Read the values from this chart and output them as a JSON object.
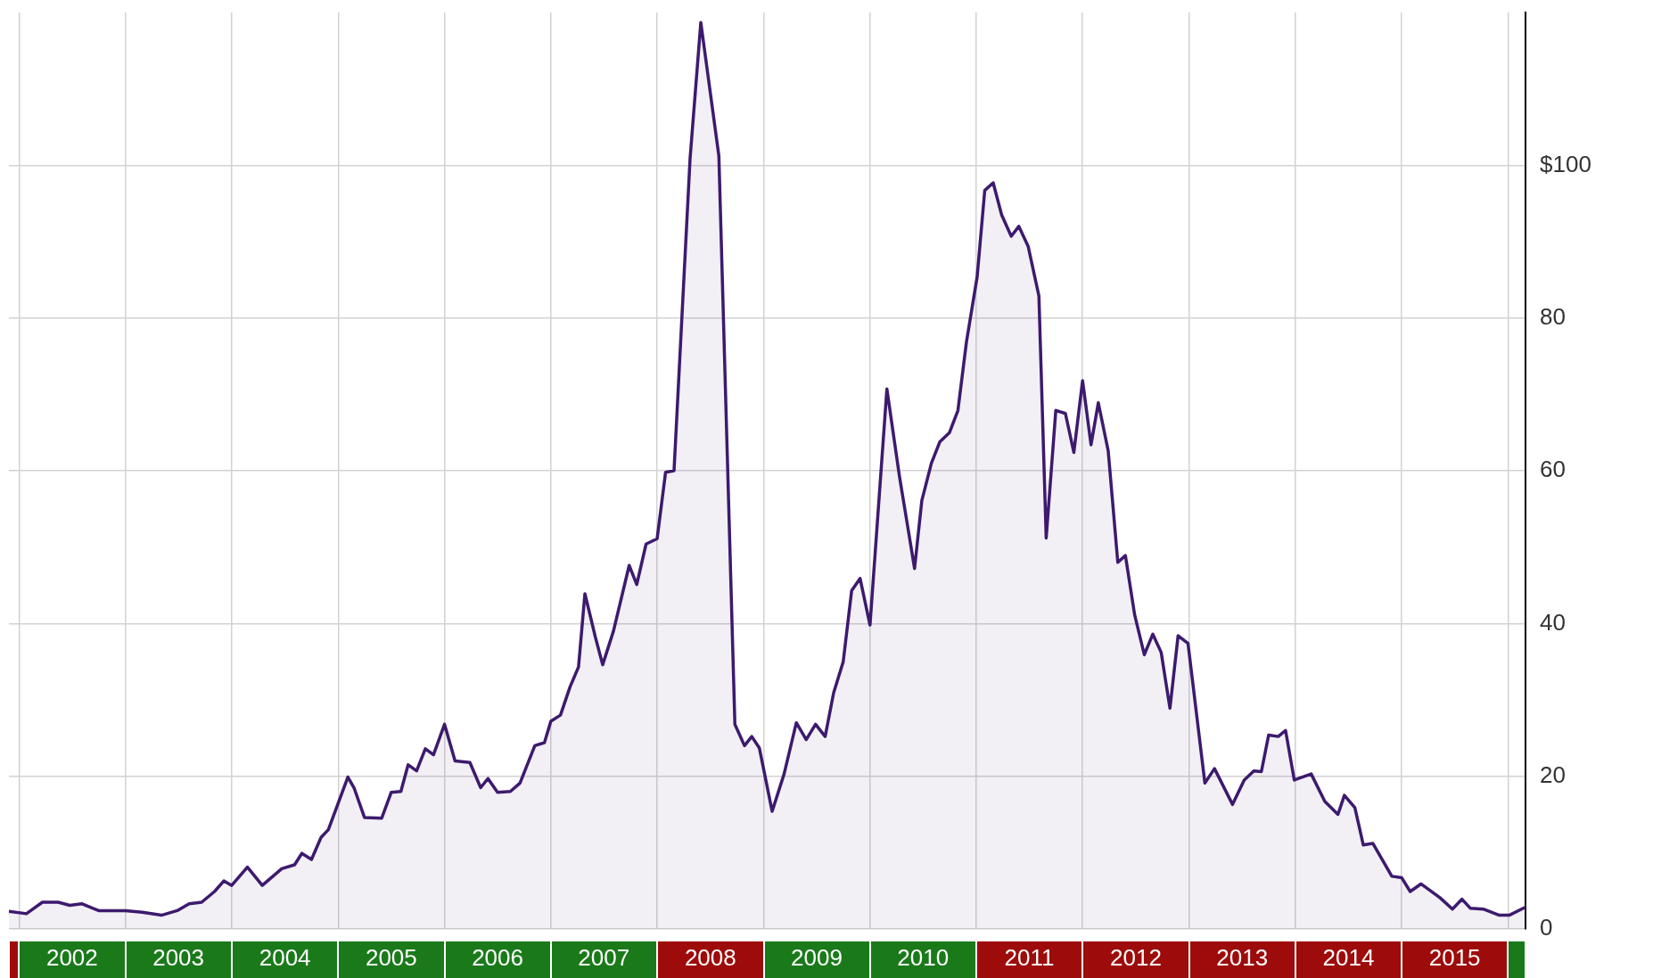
{
  "chart_data": {
    "type": "area",
    "x": [
      "2001-11-27",
      "2002-01-26",
      "2002-03-22",
      "2002-05-15",
      "2002-06-24",
      "2002-08-04",
      "2002-10-01",
      "2003-01-01",
      "2003-02-28",
      "2003-05-05",
      "2003-06-28",
      "2003-08-08",
      "2003-09-20",
      "2003-11-03",
      "2003-12-05",
      "2004-01-01",
      "2004-02-24",
      "2004-04-15",
      "2004-06-21",
      "2004-08-04",
      "2004-08-29",
      "2004-10-01",
      "2004-11-03",
      "2004-11-28",
      "2005-02-03",
      "2005-02-24",
      "2005-04-01",
      "2005-05-30",
      "2005-07-02",
      "2005-08-04",
      "2005-08-29",
      "2005-09-27",
      "2005-10-27",
      "2005-11-24",
      "2006-01-01",
      "2006-02-06",
      "2006-03-29",
      "2006-05-05",
      "2006-05-30",
      "2006-07-02",
      "2006-08-15",
      "2006-09-17",
      "2006-11-07",
      "2006-12-10",
      "2007-01-01",
      "2007-02-03",
      "2007-03-08",
      "2007-04-06",
      "2007-04-28",
      "2007-06-03",
      "2007-06-28",
      "2007-08-04",
      "2007-09-27",
      "2007-10-23",
      "2007-11-24",
      "2008-01-01",
      "2008-01-30",
      "2008-02-28",
      "2008-04-23",
      "2008-05-30",
      "2008-07-31",
      "2008-09-24",
      "2008-10-27",
      "2008-11-21",
      "2008-12-17",
      "2009-01-30",
      "2009-03-12",
      "2009-04-23",
      "2009-05-27",
      "2009-06-28",
      "2009-07-31",
      "2009-08-29",
      "2009-10-01",
      "2009-10-30",
      "2009-11-28",
      "2010-01-01",
      "2010-02-28",
      "2010-04-12",
      "2010-06-03",
      "2010-06-28",
      "2010-07-31",
      "2010-08-29",
      "2010-10-01",
      "2010-10-30",
      "2010-11-28",
      "2011-01-04",
      "2011-01-30",
      "2011-02-28",
      "2011-03-29",
      "2011-05-01",
      "2011-05-27",
      "2011-06-28",
      "2011-08-04",
      "2011-08-29",
      "2011-10-01",
      "2011-11-03",
      "2011-12-02",
      "2012-01-01",
      "2012-01-30",
      "2012-02-24",
      "2012-03-29",
      "2012-05-01",
      "2012-05-27",
      "2012-06-28",
      "2012-07-31",
      "2012-08-29",
      "2012-09-27",
      "2012-10-27",
      "2012-11-24",
      "2012-12-28",
      "2013-02-24",
      "2013-03-29",
      "2013-05-30",
      "2013-07-09",
      "2013-08-11",
      "2013-09-06",
      "2013-10-01",
      "2013-11-03",
      "2013-11-28",
      "2013-12-28",
      "2014-02-24",
      "2014-04-12",
      "2014-05-27",
      "2014-06-18",
      "2014-07-24",
      "2014-08-22",
      "2014-09-24",
      "2014-11-28",
      "2015-01-01",
      "2015-01-30",
      "2015-03-08",
      "2015-05-12",
      "2015-06-24",
      "2015-07-27",
      "2015-08-25",
      "2015-10-08",
      "2015-12-02",
      "2016-01-05",
      "2016-02-27"
    ],
    "values": [
      2.3,
      2.0,
      3.5,
      3.5,
      3.1,
      3.3,
      2.4,
      2.4,
      2.2,
      1.8,
      2.4,
      3.3,
      3.5,
      4.9,
      6.3,
      5.7,
      8.1,
      5.7,
      7.9,
      8.4,
      9.9,
      9.1,
      12.0,
      13.0,
      19.9,
      18.5,
      14.6,
      14.5,
      17.9,
      18.0,
      21.5,
      20.7,
      23.6,
      22.8,
      26.8,
      22.0,
      21.8,
      18.5,
      19.7,
      17.9,
      18.0,
      19.1,
      24.0,
      24.4,
      27.2,
      28.0,
      31.7,
      34.3,
      43.9,
      38.2,
      34.6,
      39.0,
      47.6,
      45.1,
      50.4,
      51.1,
      59.8,
      60.0,
      100.8,
      118.7,
      101.2,
      26.8,
      24.0,
      25.2,
      23.7,
      15.4,
      20.3,
      27.0,
      24.8,
      26.8,
      25.2,
      30.9,
      35.0,
      44.3,
      45.9,
      39.8,
      70.7,
      59.3,
      47.2,
      56.1,
      61.0,
      63.8,
      65.0,
      67.9,
      76.8,
      85.4,
      96.7,
      97.7,
      93.5,
      90.7,
      92.0,
      89.4,
      82.9,
      51.2,
      67.9,
      67.5,
      62.4,
      71.8,
      63.4,
      68.9,
      62.6,
      48.0,
      48.9,
      41.1,
      35.9,
      38.6,
      36.2,
      28.9,
      38.4,
      37.4,
      19.1,
      21.0,
      16.3,
      19.5,
      20.7,
      20.6,
      25.4,
      25.2,
      26.0,
      19.5,
      20.3,
      16.7,
      15.0,
      17.5,
      15.9,
      11.0,
      11.2,
      6.9,
      6.7,
      4.9,
      5.9,
      4.1,
      2.6,
      3.9,
      2.7,
      2.6,
      1.8,
      1.8,
      2.8
    ],
    "color": "#3d1a6e",
    "xlim": [
      "2001-11-27",
      "2016-03-01"
    ],
    "xticks": [
      {
        "value": "2002",
        "label": null
      },
      {
        "value": "2002-07-02",
        "label": "2002"
      },
      {
        "value": "2003",
        "label": null
      },
      {
        "value": "2003-07-02",
        "label": "2003"
      },
      {
        "value": "2004",
        "label": null
      },
      {
        "value": "2004-07-02",
        "label": "2004"
      },
      {
        "value": "2005",
        "label": null
      },
      {
        "value": "2005-07-02",
        "label": "2005"
      },
      {
        "value": "2006",
        "label": null
      },
      {
        "value": "2006-07-02",
        "label": "2006"
      },
      {
        "value": "2007",
        "label": null
      },
      {
        "value": "2007-07-02",
        "label": "2007"
      },
      {
        "value": "2008",
        "label": null
      },
      {
        "value": "2008-07-02",
        "label": "2008"
      },
      {
        "value": "2009",
        "label": null
      },
      {
        "value": "2009-07-02",
        "label": "2009"
      },
      {
        "value": "2010",
        "label": null
      },
      {
        "value": "2010-07-02",
        "label": "2010"
      },
      {
        "value": "2011",
        "label": null
      },
      {
        "value": "2011-07-02",
        "label": "2011"
      },
      {
        "value": "2012",
        "label": null
      },
      {
        "value": "2012-07-02",
        "label": "2012"
      },
      {
        "value": "2013",
        "label": null
      },
      {
        "value": "2013-07-02",
        "label": "2013"
      },
      {
        "value": "2014",
        "label": null
      },
      {
        "value": "2014-07-02",
        "label": "2014"
      },
      {
        "value": "2015",
        "label": null
      },
      {
        "value": "2015-07-02",
        "label": "2015"
      },
      {
        "value": "2016",
        "label": null
      }
    ],
    "ylim": [
      0,
      120
    ],
    "yticks": [
      0,
      20,
      40,
      60,
      80,
      {
        "value": 100,
        "label": "$100"
      }
    ],
    "grid": true
  }
}
